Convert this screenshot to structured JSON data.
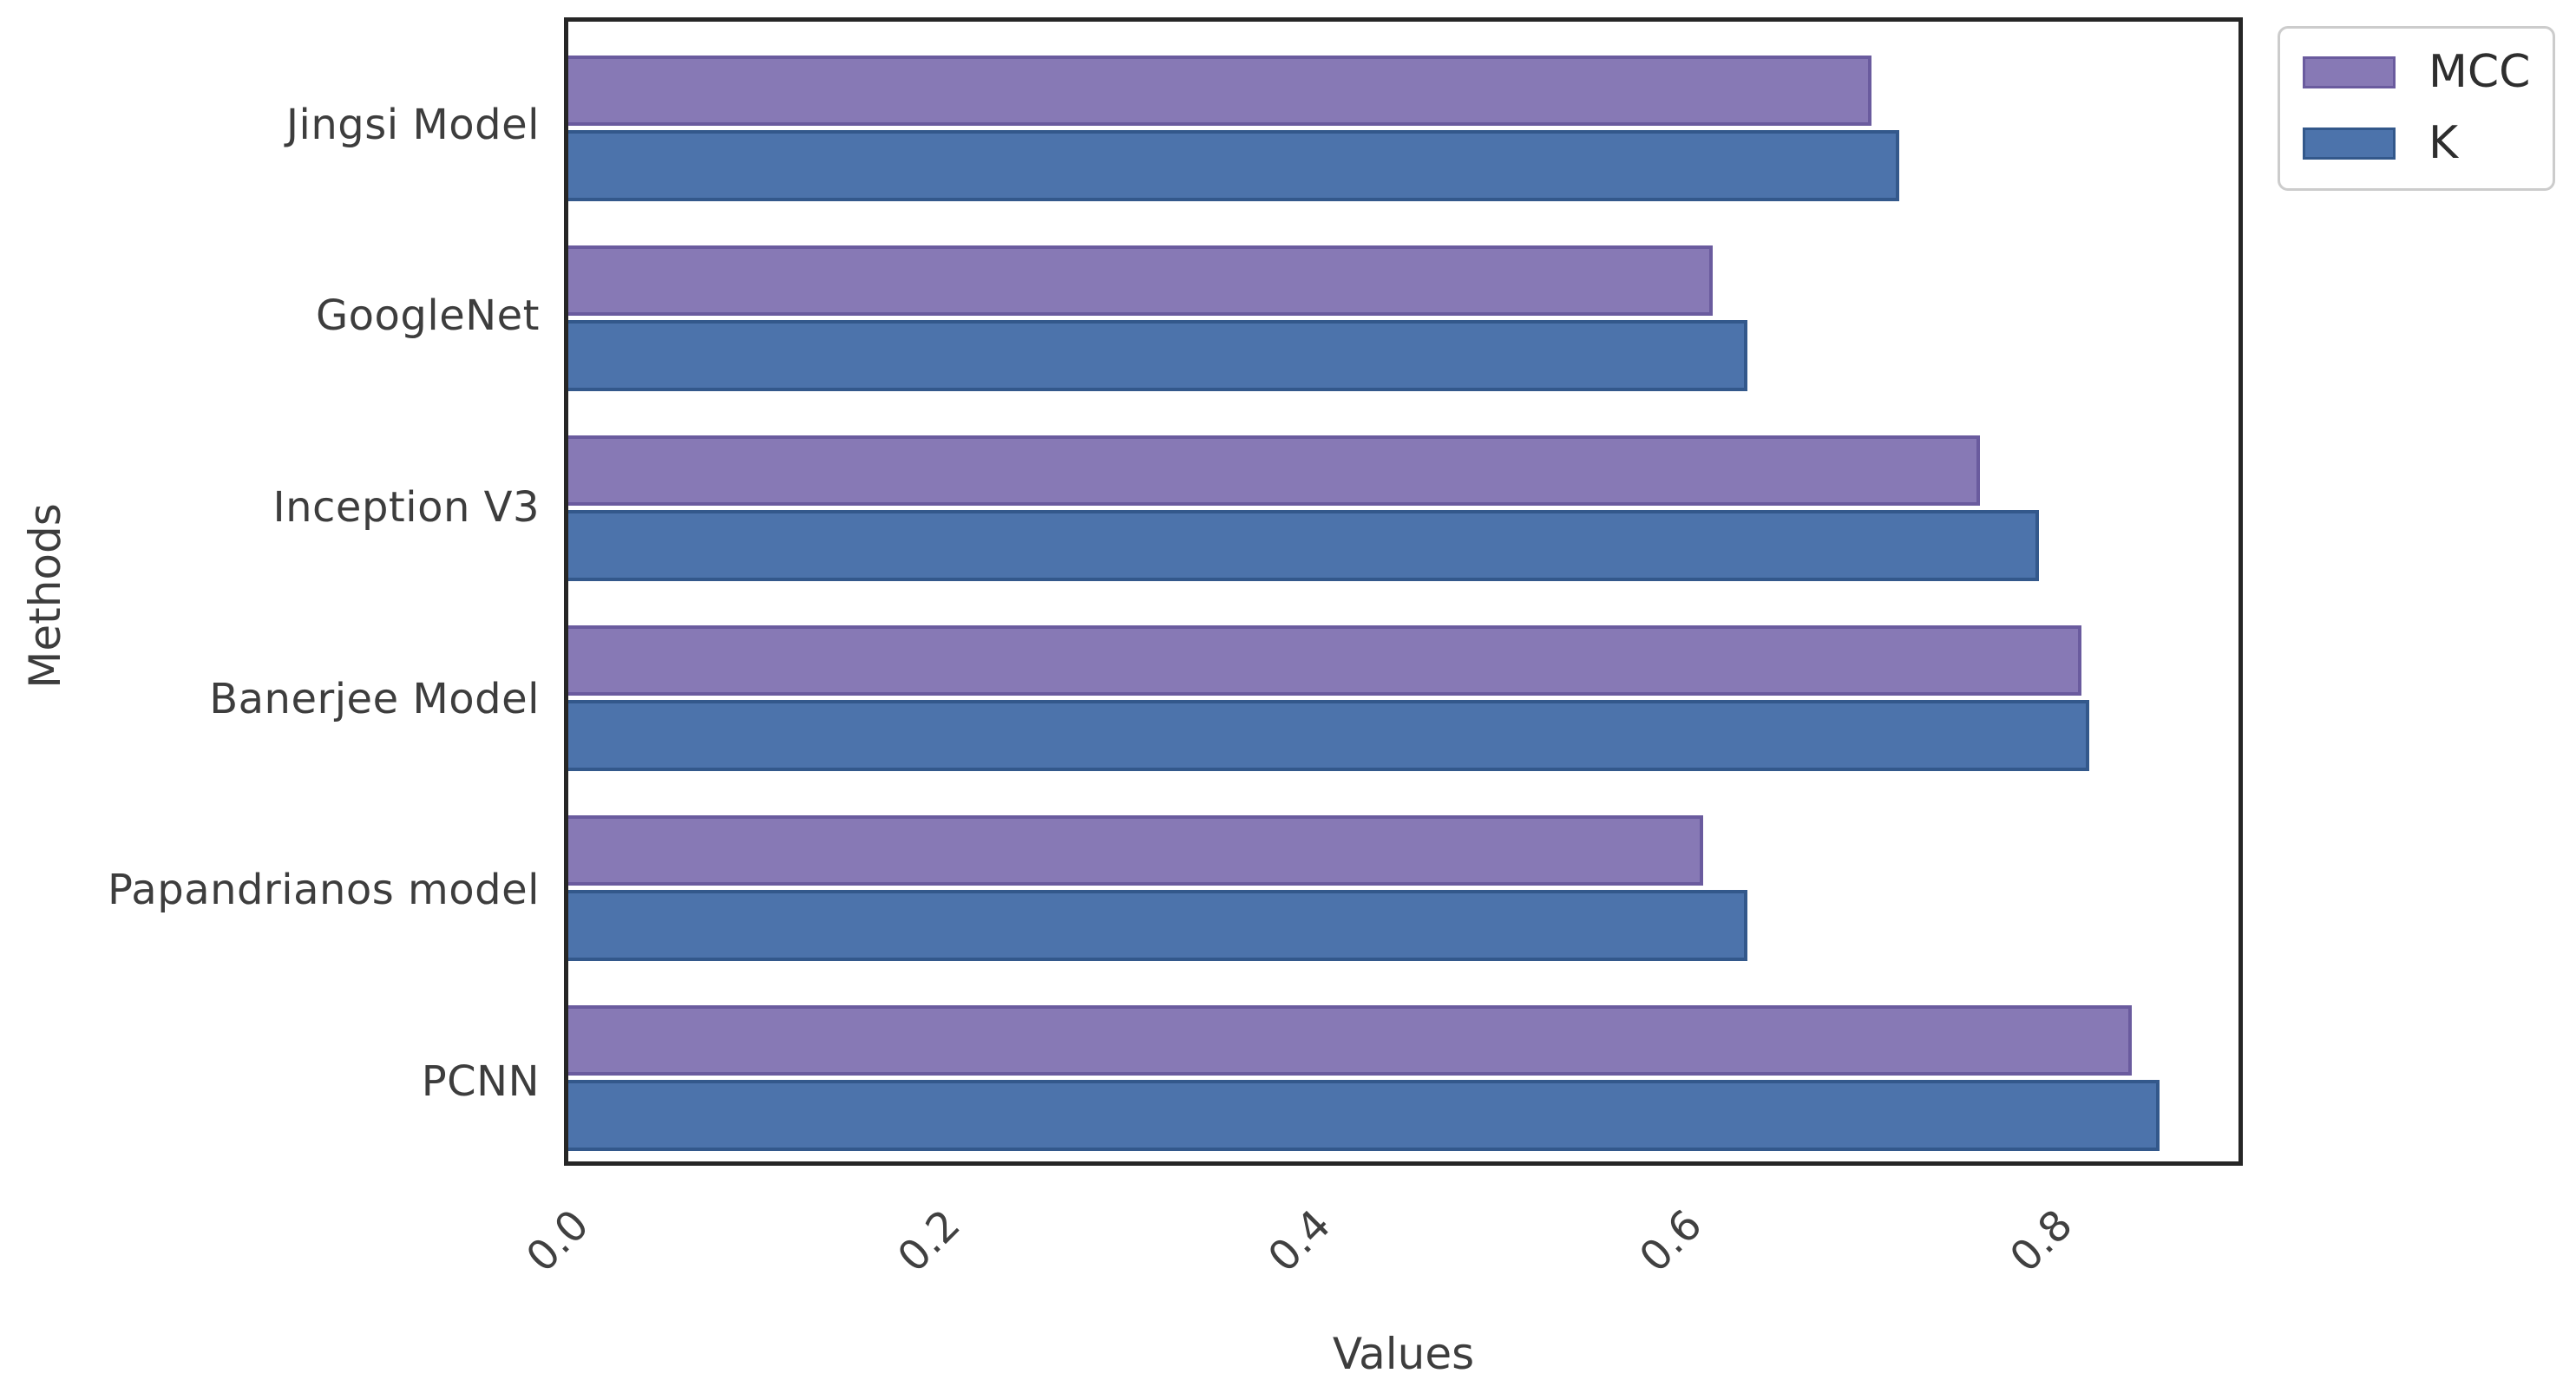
{
  "chart_data": {
    "type": "bar",
    "orientation": "horizontal",
    "title": "",
    "xlabel": "Values",
    "ylabel": "Methods",
    "categories": [
      "Jingsi Model",
      "GoogleNet",
      "Inception V3",
      "Banerjee Model",
      "Papandrianos model",
      "PCNN"
    ],
    "series": [
      {
        "name": "MCC",
        "color": "#8779b5",
        "edge_color": "#6a5b9e",
        "values": [
          0.706,
          0.62,
          0.765,
          0.82,
          0.615,
          0.847
        ]
      },
      {
        "name": "K",
        "color": "#4c73ab",
        "edge_color": "#33588b",
        "values": [
          0.721,
          0.639,
          0.797,
          0.824,
          0.639,
          0.862
        ]
      }
    ],
    "xlim": [
      0,
      0.905
    ],
    "xticks": {
      "values": [
        0.0,
        0.2,
        0.4,
        0.6,
        0.8
      ],
      "labels": [
        "0.0",
        "0.2",
        "0.4",
        "0.6",
        "0.8"
      ],
      "rotation_deg": 45
    },
    "grid": false,
    "legend": {
      "position": "outside-top-right",
      "entries": [
        "MCC",
        "K"
      ]
    }
  },
  "style": {
    "axis_color": "#262626",
    "text_color": "#3d3d3d",
    "tick_color": "#404040",
    "legend_border_color": "#cccccc",
    "background": "#ffffff"
  }
}
